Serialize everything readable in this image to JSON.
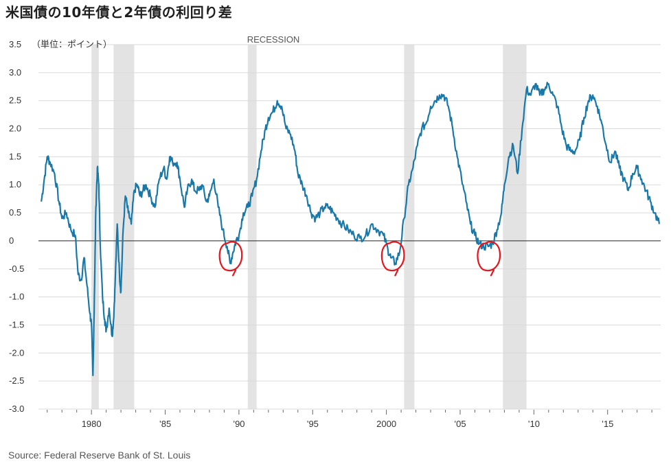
{
  "title": "米国債の10年債と2年債の利回り差",
  "source": "Source: Federal Reserve Bank of St. Louis",
  "colors": {
    "line": "#1a78a8",
    "recession": "#e3e3e3",
    "annotation": "#e8141c",
    "zero_line": "#222222",
    "grid": "#d9d9d9"
  },
  "chart_data": {
    "type": "line",
    "title": "米国債の10年債と2年債の利回り差",
    "ylabel": "（単位：ポイント）",
    "xlabel": "",
    "ylim": [
      -3.0,
      3.5
    ],
    "xlim": [
      1976.5,
      2018.6
    ],
    "grid": true,
    "y_ticks": [
      {
        "value": 3.5,
        "label": "3.5"
      },
      {
        "value": 3.0,
        "label": "3.0"
      },
      {
        "value": 2.5,
        "label": "2.5"
      },
      {
        "value": 2.0,
        "label": "2.0"
      },
      {
        "value": 1.5,
        "label": "1.5"
      },
      {
        "value": 1.0,
        "label": "1.0"
      },
      {
        "value": 0.5,
        "label": "0.5"
      },
      {
        "value": 0,
        "label": "0"
      },
      {
        "value": -0.5,
        "label": "-0.5"
      },
      {
        "value": -1.0,
        "label": "-1.0"
      },
      {
        "value": -1.5,
        "label": "-1.5"
      },
      {
        "value": -2.0,
        "label": "-2.0"
      },
      {
        "value": -2.5,
        "label": "-2.5"
      },
      {
        "value": -3.0,
        "label": "-3.0"
      }
    ],
    "x_ticks": [
      {
        "value": 1980,
        "label": "1980"
      },
      {
        "value": 1985,
        "label": "’85"
      },
      {
        "value": 1990,
        "label": "’90"
      },
      {
        "value": 1995,
        "label": "’95"
      },
      {
        "value": 2000,
        "label": "2000"
      },
      {
        "value": 2005,
        "label": "’05"
      },
      {
        "value": 2010,
        "label": "’10"
      },
      {
        "value": 2015,
        "label": "’15"
      }
    ],
    "recession_label": "RECESSION",
    "recessions": [
      [
        1980.0,
        1980.5
      ],
      [
        1981.5,
        1982.9
      ],
      [
        1990.6,
        1991.2
      ],
      [
        2001.2,
        2001.9
      ],
      [
        2007.9,
        2009.5
      ]
    ],
    "inversion_circles": [
      1989.5,
      2000.5,
      2007.0
    ],
    "series": [
      {
        "x": [
          1976.6,
          1976.8,
          1977.0,
          1977.2,
          1977.5,
          1977.8,
          1978.0,
          1978.3,
          1978.6,
          1978.9,
          1979.1,
          1979.3,
          1979.5,
          1979.7,
          1979.9,
          1980.0,
          1980.1,
          1980.2,
          1980.3,
          1980.4,
          1980.5,
          1980.6,
          1980.75,
          1980.9,
          1981.0,
          1981.2,
          1981.4,
          1981.5,
          1981.6,
          1981.75,
          1981.9,
          1982.0,
          1982.15,
          1982.3,
          1982.5,
          1982.7,
          1982.9,
          1983.1,
          1983.3,
          1983.5,
          1983.7,
          1984.0,
          1984.3,
          1984.6,
          1984.9,
          1985.1,
          1985.3,
          1985.5,
          1985.8,
          1986.0,
          1986.3,
          1986.5,
          1986.8,
          1987.0,
          1987.3,
          1987.5,
          1987.8,
          1988.0,
          1988.3,
          1988.6,
          1988.9,
          1989.2,
          1989.4,
          1989.6,
          1989.8,
          1990.0,
          1990.3,
          1990.6,
          1990.9,
          1991.2,
          1991.5,
          1991.8,
          1992.0,
          1992.3,
          1992.6,
          1992.9,
          1993.2,
          1993.5,
          1993.8,
          1994.0,
          1994.3,
          1994.6,
          1994.9,
          1995.2,
          1995.5,
          1995.8,
          1996.1,
          1996.4,
          1996.7,
          1997.0,
          1997.4,
          1997.8,
          1998.2,
          1998.6,
          1999.0,
          1999.4,
          1999.8,
          2000.1,
          2000.3,
          2000.6,
          2000.9,
          2001.2,
          2001.5,
          2001.8,
          2002.1,
          2002.4,
          2002.7,
          2003.0,
          2003.3,
          2003.6,
          2003.9,
          2004.2,
          2004.5,
          2004.8,
          2005.1,
          2005.4,
          2005.7,
          2006.0,
          2006.3,
          2006.6,
          2006.9,
          2007.2,
          2007.5,
          2007.8,
          2008.0,
          2008.3,
          2008.6,
          2008.9,
          2009.2,
          2009.5,
          2009.8,
          2010.1,
          2010.4,
          2010.7,
          2011.0,
          2011.3,
          2011.6,
          2011.9,
          2012.2,
          2012.5,
          2012.8,
          2013.1,
          2013.4,
          2013.7,
          2014.0,
          2014.3,
          2014.6,
          2014.9,
          2015.2,
          2015.5,
          2015.8,
          2016.1,
          2016.4,
          2016.7,
          2017.0,
          2017.3,
          2017.6,
          2017.9,
          2018.2,
          2018.5
        ],
        "y": [
          0.7,
          1.1,
          1.5,
          1.4,
          1.2,
          0.7,
          0.4,
          0.5,
          0.2,
          0.1,
          -0.6,
          -0.7,
          -0.3,
          -0.8,
          -1.3,
          -1.5,
          -2.4,
          -1.0,
          0.6,
          1.3,
          1.0,
          -0.1,
          -1.0,
          -1.4,
          -1.6,
          -1.2,
          -1.7,
          -1.4,
          -0.8,
          0.3,
          -0.6,
          -0.9,
          0.2,
          0.8,
          0.5,
          0.3,
          0.9,
          1.0,
          0.8,
          0.9,
          1.0,
          0.8,
          0.6,
          1.1,
          1.3,
          1.1,
          1.5,
          1.4,
          1.4,
          1.1,
          0.6,
          0.9,
          1.1,
          0.9,
          0.9,
          1.0,
          0.7,
          0.8,
          1.1,
          0.6,
          0.2,
          -0.1,
          -0.4,
          -0.2,
          0.0,
          0.1,
          0.5,
          0.6,
          0.8,
          1.1,
          1.6,
          2.0,
          2.2,
          2.3,
          2.5,
          2.4,
          2.0,
          1.9,
          1.6,
          1.2,
          1.0,
          0.8,
          0.5,
          0.4,
          0.5,
          0.6,
          0.6,
          0.5,
          0.4,
          0.3,
          0.2,
          0.1,
          0.05,
          0.1,
          0.3,
          0.2,
          0.1,
          -0.15,
          -0.3,
          -0.4,
          -0.2,
          0.4,
          1.0,
          1.3,
          1.7,
          2.0,
          2.1,
          2.4,
          2.5,
          2.6,
          2.6,
          2.4,
          2.0,
          1.5,
          1.1,
          0.7,
          0.3,
          0.1,
          -0.05,
          -0.1,
          -0.1,
          -0.05,
          0.2,
          0.5,
          1.0,
          1.5,
          1.7,
          1.2,
          2.0,
          2.7,
          2.6,
          2.8,
          2.6,
          2.7,
          2.8,
          2.6,
          2.4,
          2.0,
          1.7,
          1.6,
          1.6,
          1.8,
          2.2,
          2.5,
          2.6,
          2.4,
          2.1,
          1.7,
          1.4,
          1.6,
          1.3,
          1.1,
          0.9,
          1.2,
          1.3,
          1.1,
          0.9,
          0.7,
          0.5,
          0.3
        ]
      }
    ]
  }
}
